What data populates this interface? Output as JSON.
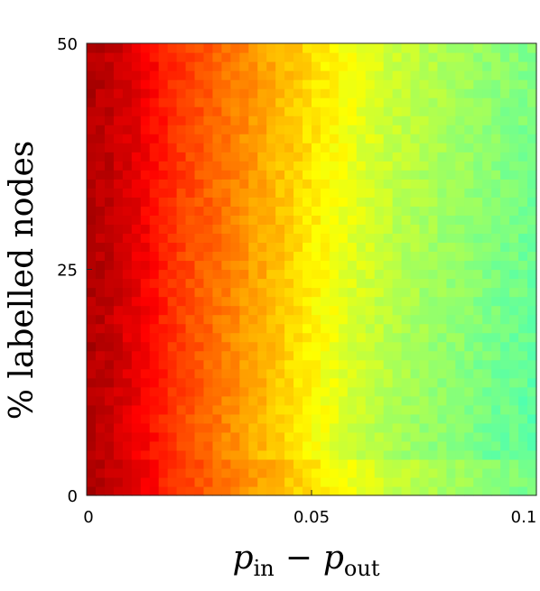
{
  "chart_data": {
    "type": "heatmap",
    "title": "",
    "colormap": "jet",
    "grid": false,
    "legend": "none",
    "x": {
      "label_main": "p",
      "label_sub1": "in",
      "label_op": "−",
      "label_sub2": "out",
      "range": [
        0,
        0.1
      ],
      "ticks": [
        0,
        0.05,
        0.1
      ],
      "tick_labels": [
        "0",
        "0.05",
        "0.1"
      ]
    },
    "y": {
      "label": "% labelled nodes",
      "range": [
        0,
        50
      ],
      "ticks": [
        0,
        25,
        50
      ],
      "tick_labels": [
        "0",
        "25",
        "50"
      ]
    },
    "grid_shape": {
      "cols": 50,
      "rows": 50
    },
    "color_scale": {
      "min": 0.0,
      "max": 1.0
    },
    "value_profile_x": [
      [
        0.0,
        0.955
      ],
      [
        0.006,
        0.93
      ],
      [
        0.012,
        0.89
      ],
      [
        0.02,
        0.82
      ],
      [
        0.03,
        0.76
      ],
      [
        0.04,
        0.7
      ],
      [
        0.05,
        0.64
      ],
      [
        0.06,
        0.59
      ],
      [
        0.07,
        0.55
      ],
      [
        0.08,
        0.525
      ],
      [
        0.09,
        0.5
      ],
      [
        0.1,
        0.48
      ]
    ],
    "noise_amplitude": 0.02
  }
}
